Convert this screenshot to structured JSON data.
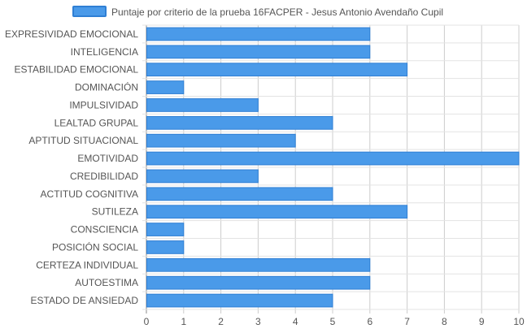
{
  "chart_data": {
    "type": "bar",
    "orientation": "horizontal",
    "categories": [
      "EXPRESIVIDAD EMOCIONAL",
      "INTELIGENCIA",
      "ESTABILIDAD EMOCIONAL",
      "DOMINACIÓN",
      "IMPULSIVIDAD",
      "LEALTAD GRUPAL",
      "APTITUD SITUACIONAL",
      "EMOTIVIDAD",
      "CREDIBILIDAD",
      "ACTITUD COGNITIVA",
      "SUTILEZA",
      "CONSCIENCIA",
      "POSICIÓN SOCIAL",
      "CERTEZA INDIVIDUAL",
      "AUTOESTIMA",
      "ESTADO DE ANSIEDAD"
    ],
    "series": [
      {
        "name": "Puntaje por criterio de la prueba 16FACPER - Jesus Antonio Avendaño Cupil",
        "values": [
          6,
          6,
          7,
          1,
          3,
          5,
          4,
          10,
          3,
          5,
          7,
          1,
          1,
          6,
          6,
          5
        ],
        "color": "#4a9ae9",
        "border_color": "#2f7fd4"
      }
    ],
    "xlim": [
      0,
      10
    ],
    "x_ticks": [
      "0",
      "1",
      "2",
      "3",
      "4",
      "5",
      "6",
      "7",
      "8",
      "9",
      "10"
    ],
    "grid": true,
    "legend_position": "top"
  }
}
